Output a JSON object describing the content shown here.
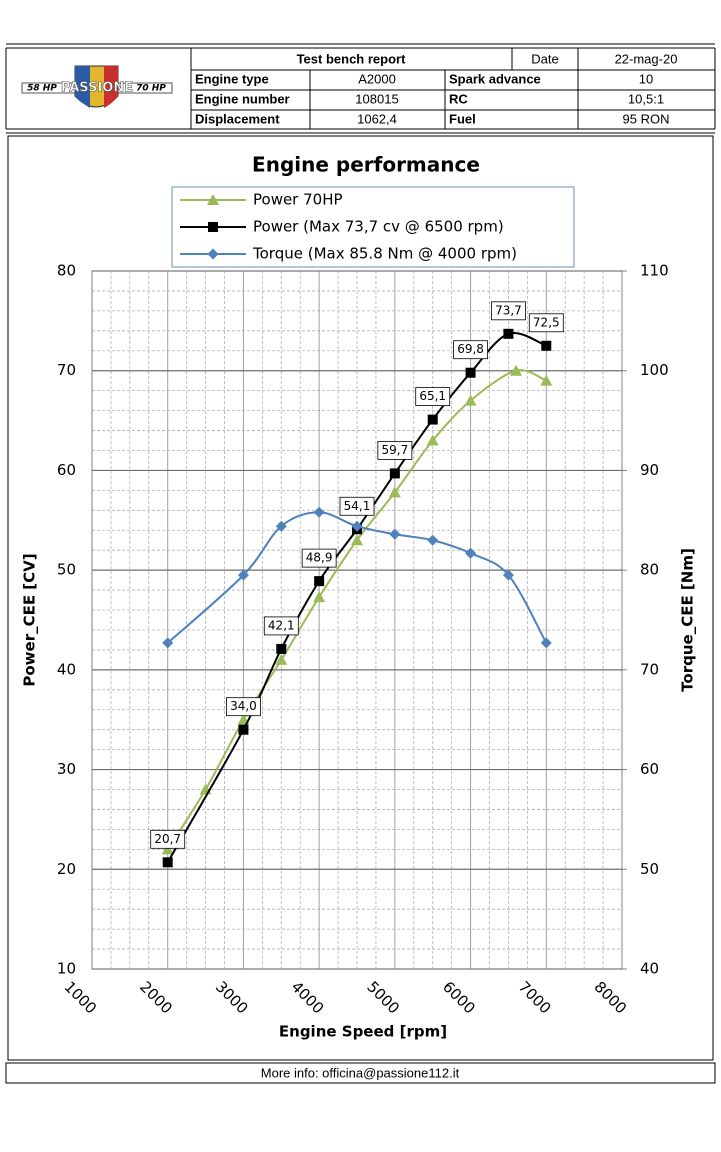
{
  "header": {
    "title": "Test bench report",
    "date_label": "Date",
    "date": "22-mag-20",
    "rows": [
      [
        "Engine type",
        "A2000",
        "Spark advance",
        "10"
      ],
      [
        "Engine number",
        "108015",
        "RC",
        "10,5:1"
      ],
      [
        "Displacement",
        "1062,4",
        "Fuel",
        "95 RON"
      ]
    ]
  },
  "logo": {
    "left": "58 HP",
    "name": "PASSIONE",
    "right": "70 HP"
  },
  "footer": "More info: officina@passione112.it",
  "chart_data": {
    "type": "line",
    "title": "Engine performance",
    "xlabel": "Engine Speed [rpm]",
    "ylabel": "Power_CEE  [CV]",
    "y2label": "Torque_CEE  [Nm]",
    "xlim": [
      1000,
      8000
    ],
    "xticks": [
      1000,
      2000,
      3000,
      4000,
      5000,
      6000,
      7000,
      8000
    ],
    "ylim": [
      10,
      80
    ],
    "yticks": [
      10,
      20,
      30,
      40,
      50,
      60,
      70,
      80
    ],
    "y2lim": [
      40,
      110
    ],
    "y2ticks": [
      40,
      50,
      60,
      70,
      80,
      90,
      100,
      110
    ],
    "grid": true,
    "legend": "top",
    "series": [
      {
        "name": "Power 70HP",
        "color": "#9bbb59",
        "marker": "triangle",
        "x": [
          2000,
          2500,
          3000,
          3500,
          4000,
          4500,
          5000,
          5500,
          6000,
          6600,
          7000
        ],
        "values": [
          22,
          28,
          35,
          41,
          47.3,
          53,
          57.8,
          63,
          67,
          70,
          69
        ]
      },
      {
        "name": "Power (Max 73,7 cv @ 6500 rpm)",
        "color": "#000000",
        "marker": "square",
        "x": [
          2000,
          3000,
          3500,
          4000,
          4500,
          5000,
          5500,
          6000,
          6500,
          7000
        ],
        "values": [
          20.7,
          34.0,
          42.1,
          48.9,
          54.1,
          59.7,
          65.1,
          69.8,
          73.7,
          72.5
        ],
        "value_labels": [
          "20,7",
          "34,0",
          "42,1",
          "48,9",
          "54,1",
          "59,7",
          "65,1",
          "69,8",
          "73,7",
          "72,5"
        ]
      },
      {
        "name": "Torque (Max 85.8 Nm @ 4000 rpm)",
        "color": "#4f81bd",
        "marker": "diamond",
        "axis": "y2",
        "x": [
          2000,
          3000,
          3500,
          4000,
          4500,
          5000,
          5500,
          6000,
          6500,
          7000
        ],
        "values": [
          72.7,
          79.5,
          84.4,
          85.8,
          84.4,
          83.6,
          83,
          81.7,
          79.5,
          72.7
        ]
      }
    ]
  }
}
